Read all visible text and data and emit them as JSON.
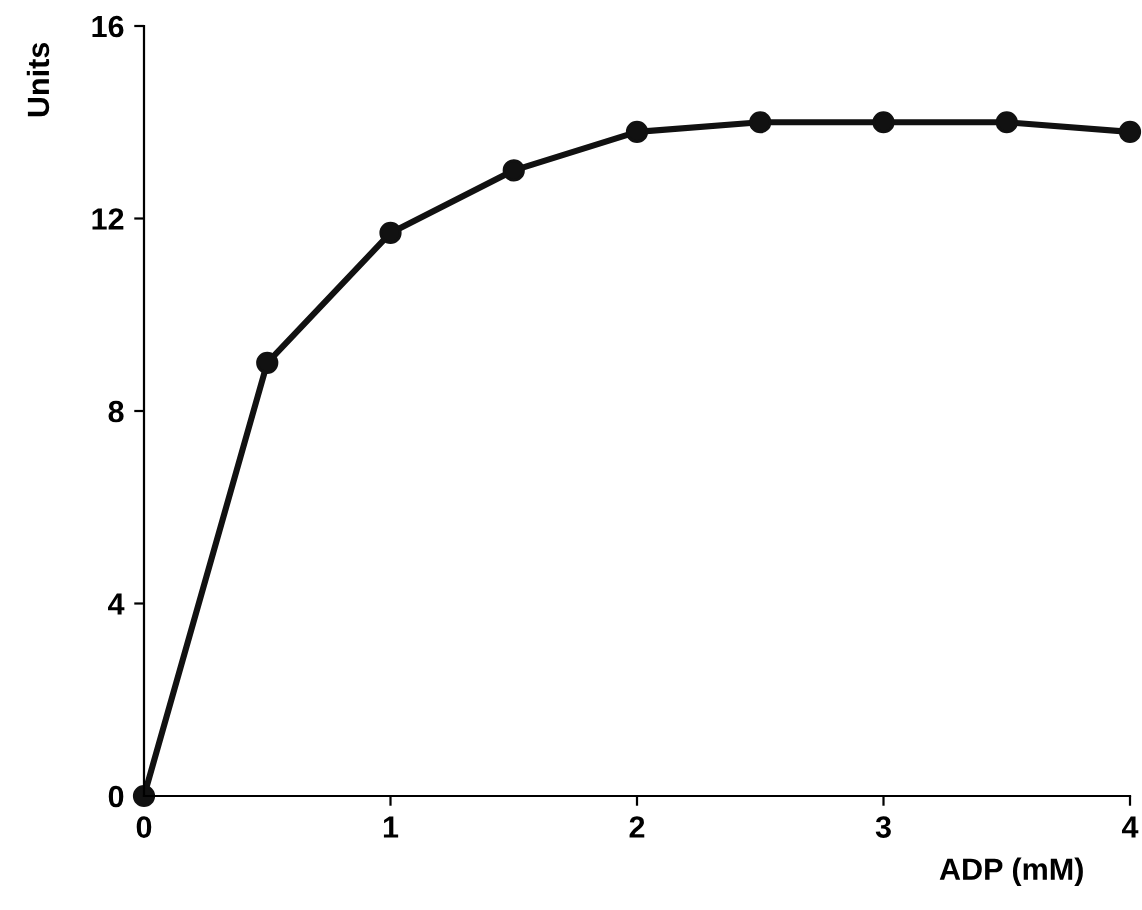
{
  "chart_data": {
    "type": "line",
    "xlabel": "ADP (mM)",
    "ylabel": "Units",
    "x": [
      0,
      0.5,
      1,
      1.5,
      2,
      2.5,
      3,
      3.5,
      4
    ],
    "series": [
      {
        "color": "#111111",
        "values": [
          0,
          9.0,
          11.7,
          13.0,
          13.8,
          14.0,
          14.0,
          14.0,
          13.8
        ]
      }
    ],
    "xlim": [
      0,
      4
    ],
    "xticks": [
      0,
      1,
      2,
      3,
      4
    ],
    "ylim": [
      0,
      16
    ],
    "yticks": [
      0,
      4,
      8,
      12,
      16
    ],
    "marker": "circle",
    "line_style": "solid",
    "grid": false,
    "legend": false
  }
}
